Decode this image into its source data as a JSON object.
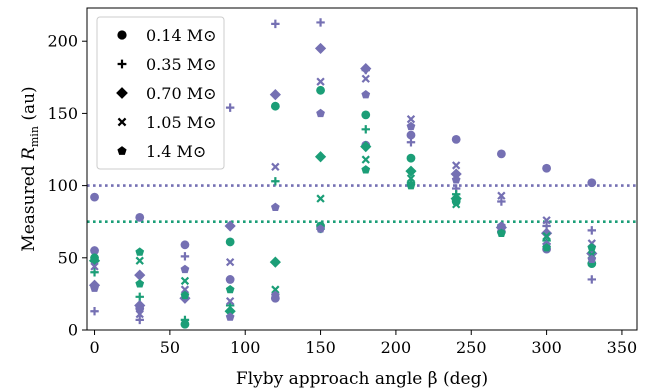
{
  "chart_data": {
    "type": "scatter",
    "xlabel": "Flyby approach angle β (deg)",
    "ylabel_main": "Measured ",
    "ylabel_var": "R",
    "ylabel_sub": "min",
    "ylabel_unit": " (au)",
    "xlim": [
      -5,
      360
    ],
    "ylim": [
      0,
      223
    ],
    "xticks": [
      0,
      50,
      100,
      150,
      200,
      250,
      300,
      350
    ],
    "yticks": [
      0,
      50,
      100,
      150,
      200
    ],
    "grid": false,
    "legend_position": "top-left",
    "colors": {
      "purple": "#7570b3",
      "green": "#1b9e77"
    },
    "reference_lines": [
      {
        "y": 100,
        "color": "#7570b3",
        "style": "dotted"
      },
      {
        "y": 75,
        "color": "#1b9e77",
        "style": "dotted"
      }
    ],
    "series": [
      {
        "name": "0.14 M⊙",
        "marker": "circle",
        "points": [
          {
            "x": 0,
            "y": 92,
            "c": "purple"
          },
          {
            "x": 0,
            "y": 55,
            "c": "purple"
          },
          {
            "x": 0,
            "y": 50,
            "c": "green"
          },
          {
            "x": 30,
            "y": 78,
            "c": "purple"
          },
          {
            "x": 30,
            "y": 15,
            "c": "purple"
          },
          {
            "x": 60,
            "y": 59,
            "c": "purple"
          },
          {
            "x": 60,
            "y": 4,
            "c": "green"
          },
          {
            "x": 90,
            "y": 61,
            "c": "green"
          },
          {
            "x": 90,
            "y": 35,
            "c": "purple"
          },
          {
            "x": 120,
            "y": 155,
            "c": "green"
          },
          {
            "x": 120,
            "y": 22,
            "c": "purple"
          },
          {
            "x": 150,
            "y": 166,
            "c": "green"
          },
          {
            "x": 150,
            "y": 72,
            "c": "green"
          },
          {
            "x": 180,
            "y": 149,
            "c": "green"
          },
          {
            "x": 180,
            "y": 128,
            "c": "purple"
          },
          {
            "x": 210,
            "y": 135,
            "c": "purple"
          },
          {
            "x": 210,
            "y": 119,
            "c": "green"
          },
          {
            "x": 240,
            "y": 132,
            "c": "purple"
          },
          {
            "x": 240,
            "y": 89,
            "c": "green"
          },
          {
            "x": 270,
            "y": 122,
            "c": "purple"
          },
          {
            "x": 270,
            "y": 68,
            "c": "purple"
          },
          {
            "x": 300,
            "y": 112,
            "c": "purple"
          },
          {
            "x": 300,
            "y": 56,
            "c": "purple"
          },
          {
            "x": 330,
            "y": 102,
            "c": "purple"
          },
          {
            "x": 330,
            "y": 46,
            "c": "green"
          }
        ]
      },
      {
        "name": "0.35 M⊙",
        "marker": "plus",
        "points": [
          {
            "x": 0,
            "y": 40,
            "c": "green"
          },
          {
            "x": 0,
            "y": 13,
            "c": "purple"
          },
          {
            "x": 30,
            "y": 23,
            "c": "green"
          },
          {
            "x": 30,
            "y": 7,
            "c": "purple"
          },
          {
            "x": 60,
            "y": 51,
            "c": "purple"
          },
          {
            "x": 60,
            "y": 7,
            "c": "green"
          },
          {
            "x": 90,
            "y": 154,
            "c": "purple"
          },
          {
            "x": 90,
            "y": 17,
            "c": "green"
          },
          {
            "x": 120,
            "y": 212,
            "c": "purple"
          },
          {
            "x": 120,
            "y": 103,
            "c": "green"
          },
          {
            "x": 150,
            "y": 213,
            "c": "purple"
          },
          {
            "x": 150,
            "y": 70,
            "c": "green"
          },
          {
            "x": 180,
            "y": 139,
            "c": "green"
          },
          {
            "x": 180,
            "y": 180,
            "c": "purple"
          },
          {
            "x": 210,
            "y": 130,
            "c": "purple"
          },
          {
            "x": 210,
            "y": 102,
            "c": "green"
          },
          {
            "x": 240,
            "y": 98,
            "c": "purple"
          },
          {
            "x": 240,
            "y": 94,
            "c": "green"
          },
          {
            "x": 270,
            "y": 89,
            "c": "purple"
          },
          {
            "x": 270,
            "y": 72,
            "c": "green"
          },
          {
            "x": 300,
            "y": 72,
            "c": "purple"
          },
          {
            "x": 300,
            "y": 62,
            "c": "green"
          },
          {
            "x": 330,
            "y": 69,
            "c": "purple"
          },
          {
            "x": 330,
            "y": 35,
            "c": "purple"
          }
        ]
      },
      {
        "name": "0.70 M⊙",
        "marker": "diamond",
        "points": [
          {
            "x": 0,
            "y": 31,
            "c": "purple"
          },
          {
            "x": 0,
            "y": 48,
            "c": "green"
          },
          {
            "x": 30,
            "y": 38,
            "c": "purple"
          },
          {
            "x": 30,
            "y": 17,
            "c": "purple"
          },
          {
            "x": 60,
            "y": 22,
            "c": "purple"
          },
          {
            "x": 90,
            "y": 72,
            "c": "purple"
          },
          {
            "x": 90,
            "y": 13,
            "c": "green"
          },
          {
            "x": 120,
            "y": 163,
            "c": "purple"
          },
          {
            "x": 120,
            "y": 47,
            "c": "green"
          },
          {
            "x": 150,
            "y": 195,
            "c": "purple"
          },
          {
            "x": 150,
            "y": 120,
            "c": "green"
          },
          {
            "x": 180,
            "y": 181,
            "c": "purple"
          },
          {
            "x": 180,
            "y": 127,
            "c": "green"
          },
          {
            "x": 210,
            "y": 110,
            "c": "green"
          },
          {
            "x": 240,
            "y": 108,
            "c": "purple"
          },
          {
            "x": 240,
            "y": 91,
            "c": "green"
          },
          {
            "x": 270,
            "y": 71,
            "c": "purple"
          },
          {
            "x": 300,
            "y": 67,
            "c": "purple"
          },
          {
            "x": 330,
            "y": 53,
            "c": "purple"
          }
        ]
      },
      {
        "name": "1.05 M⊙",
        "marker": "x",
        "points": [
          {
            "x": 0,
            "y": 44,
            "c": "purple"
          },
          {
            "x": 30,
            "y": 48,
            "c": "green"
          },
          {
            "x": 30,
            "y": 11,
            "c": "purple"
          },
          {
            "x": 60,
            "y": 34,
            "c": "green"
          },
          {
            "x": 60,
            "y": 28,
            "c": "purple"
          },
          {
            "x": 90,
            "y": 47,
            "c": "purple"
          },
          {
            "x": 90,
            "y": 20,
            "c": "purple"
          },
          {
            "x": 120,
            "y": 113,
            "c": "purple"
          },
          {
            "x": 120,
            "y": 28,
            "c": "green"
          },
          {
            "x": 150,
            "y": 172,
            "c": "purple"
          },
          {
            "x": 150,
            "y": 91,
            "c": "green"
          },
          {
            "x": 180,
            "y": 174,
            "c": "purple"
          },
          {
            "x": 180,
            "y": 118,
            "c": "green"
          },
          {
            "x": 210,
            "y": 146,
            "c": "purple"
          },
          {
            "x": 210,
            "y": 105,
            "c": "green"
          },
          {
            "x": 240,
            "y": 114,
            "c": "purple"
          },
          {
            "x": 240,
            "y": 87,
            "c": "green"
          },
          {
            "x": 270,
            "y": 93,
            "c": "purple"
          },
          {
            "x": 270,
            "y": 70,
            "c": "green"
          },
          {
            "x": 300,
            "y": 76,
            "c": "purple"
          },
          {
            "x": 300,
            "y": 65,
            "c": "green"
          },
          {
            "x": 330,
            "y": 60,
            "c": "purple"
          },
          {
            "x": 330,
            "y": 52,
            "c": "green"
          }
        ]
      },
      {
        "name": "1.4 M⊙",
        "marker": "pentagon",
        "points": [
          {
            "x": 0,
            "y": 29,
            "c": "purple"
          },
          {
            "x": 30,
            "y": 54,
            "c": "green"
          },
          {
            "x": 30,
            "y": 32,
            "c": "green"
          },
          {
            "x": 60,
            "y": 42,
            "c": "purple"
          },
          {
            "x": 60,
            "y": 24,
            "c": "green"
          },
          {
            "x": 90,
            "y": 28,
            "c": "green"
          },
          {
            "x": 90,
            "y": 9,
            "c": "purple"
          },
          {
            "x": 120,
            "y": 85,
            "c": "purple"
          },
          {
            "x": 120,
            "y": 24,
            "c": "purple"
          },
          {
            "x": 150,
            "y": 150,
            "c": "purple"
          },
          {
            "x": 150,
            "y": 70,
            "c": "purple"
          },
          {
            "x": 180,
            "y": 163,
            "c": "purple"
          },
          {
            "x": 180,
            "y": 111,
            "c": "green"
          },
          {
            "x": 210,
            "y": 141,
            "c": "purple"
          },
          {
            "x": 210,
            "y": 100,
            "c": "green"
          },
          {
            "x": 240,
            "y": 104,
            "c": "purple"
          },
          {
            "x": 240,
            "y": 89,
            "c": "green"
          },
          {
            "x": 270,
            "y": 72,
            "c": "purple"
          },
          {
            "x": 270,
            "y": 67,
            "c": "green"
          },
          {
            "x": 300,
            "y": 59,
            "c": "purple"
          },
          {
            "x": 300,
            "y": 57,
            "c": "green"
          },
          {
            "x": 330,
            "y": 49,
            "c": "purple"
          },
          {
            "x": 330,
            "y": 57,
            "c": "green"
          }
        ]
      }
    ]
  }
}
